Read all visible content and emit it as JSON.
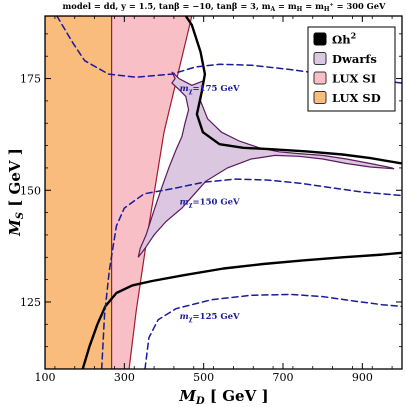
{
  "chart_data": {
    "type": "area",
    "title": "model = dd, y = 1.5, tanβ = −10, tanβ = 3, m_A = m_H = m_H± = 300 GeV",
    "title_parts": {
      "t1": "model = dd, y = 1.5, tan",
      "beta": "β",
      "t2": " = −10, tan",
      "t3": " = 3, m",
      "subA": "A",
      "t4": " = m",
      "subH": "H",
      "t5": " = m",
      "subHp": "H",
      "supHp": "+",
      "t6": " = 300 GeV"
    },
    "xlabel": {
      "main": "M",
      "sub": "D",
      "units": " [ GeV ]"
    },
    "ylabel": {
      "main": "M",
      "sub": "S",
      "units": " [ GeV ]"
    },
    "xlim": [
      100,
      1000
    ],
    "ylim": [
      110,
      189
    ],
    "x_ticks": [
      100,
      300,
      500,
      700,
      900
    ],
    "y_ticks": [
      125,
      150,
      175
    ],
    "grid": false,
    "legend_position": "top-right",
    "legend": [
      {
        "label": "Ωh",
        "sup": "2",
        "color": "#000000"
      },
      {
        "label": "Dwarfs",
        "sup": "",
        "color": "#dcc7e0"
      },
      {
        "label": "LUX SI",
        "sup": "",
        "color": "#f9bfc6"
      },
      {
        "label": "LUX SD",
        "sup": "",
        "color": "#f9bc7c"
      }
    ],
    "regions": [
      {
        "name": "LUX SD",
        "fill": "#f9bc7c",
        "stroke": "#b0601f",
        "polygon": [
          [
            100,
            110
          ],
          [
            268,
            110
          ],
          [
            268,
            189
          ],
          [
            100,
            189
          ]
        ]
      },
      {
        "name": "LUX SI",
        "fill": "#f9bfc6",
        "stroke": "#a01c2c",
        "polygon": [
          [
            268,
            110
          ],
          [
            312,
            110
          ],
          [
            330,
            123
          ],
          [
            360,
            141
          ],
          [
            400,
            163
          ],
          [
            470,
            189
          ],
          [
            268,
            189
          ]
        ]
      },
      {
        "name": "Dwarfs",
        "fill": "#dcc7e0",
        "stroke": "#5a1a5e",
        "polygon": [
          [
            335,
            135
          ],
          [
            352,
            137
          ],
          [
            375,
            140
          ],
          [
            405,
            143
          ],
          [
            445,
            146
          ],
          [
            475,
            149
          ],
          [
            505,
            152
          ],
          [
            560,
            155
          ],
          [
            620,
            157
          ],
          [
            680,
            157.8
          ],
          [
            740,
            157.6
          ],
          [
            800,
            157
          ],
          [
            860,
            156
          ],
          [
            920,
            155.2
          ],
          [
            980,
            154.8
          ],
          [
            975,
            155
          ],
          [
            920,
            156
          ],
          [
            860,
            157
          ],
          [
            800,
            157.8
          ],
          [
            740,
            158.2
          ],
          [
            690,
            158.6
          ],
          [
            640,
            159.5
          ],
          [
            590,
            161
          ],
          [
            545,
            163
          ],
          [
            510,
            166
          ],
          [
            492,
            170
          ],
          [
            500,
            174.5
          ],
          [
            470,
            173.5
          ],
          [
            438,
            175
          ],
          [
            420,
            176.5
          ],
          [
            428,
            175
          ],
          [
            420,
            174
          ],
          [
            438,
            172.5
          ],
          [
            455,
            171
          ],
          [
            462,
            168
          ],
          [
            453,
            165
          ],
          [
            445,
            162
          ],
          [
            430,
            159
          ],
          [
            412,
            155
          ],
          [
            392,
            150
          ],
          [
            373,
            145
          ],
          [
            355,
            140
          ],
          [
            340,
            137
          ]
        ]
      }
    ],
    "lines": [
      {
        "name": "Ωh² upper",
        "color": "#000000",
        "width": 2.4,
        "points": [
          [
            455,
            189
          ],
          [
            470,
            187
          ],
          [
            492,
            181
          ],
          [
            503,
            176
          ],
          [
            495,
            172
          ],
          [
            483,
            167
          ],
          [
            498,
            163
          ],
          [
            540,
            160.3
          ],
          [
            600,
            159.5
          ],
          [
            670,
            159.2
          ],
          [
            760,
            158.7
          ],
          [
            850,
            158
          ],
          [
            920,
            157.2
          ],
          [
            1000,
            156
          ]
        ]
      },
      {
        "name": "Ωh² lower",
        "color": "#000000",
        "width": 2.4,
        "points": [
          [
            195,
            110
          ],
          [
            212,
            115
          ],
          [
            232,
            120
          ],
          [
            252,
            124
          ],
          [
            280,
            127
          ],
          [
            320,
            128.7
          ],
          [
            370,
            129.7
          ],
          [
            450,
            131
          ],
          [
            550,
            132.5
          ],
          [
            650,
            133.5
          ],
          [
            750,
            134.3
          ],
          [
            850,
            135
          ],
          [
            950,
            135.6
          ],
          [
            1000,
            136
          ]
        ]
      },
      {
        "name": "m_χ = 175 GeV",
        "color": "#1a1a9a",
        "width": 1.5,
        "dash": "6 4",
        "points": [
          [
            130,
            189
          ],
          [
            170,
            183
          ],
          [
            200,
            179
          ],
          [
            260,
            176
          ],
          [
            330,
            175.3
          ],
          [
            420,
            176
          ],
          [
            480,
            177.6
          ],
          [
            540,
            178.2
          ],
          [
            620,
            178
          ],
          [
            720,
            177
          ],
          [
            820,
            175.8
          ],
          [
            920,
            174.8
          ],
          [
            1000,
            174
          ]
        ]
      },
      {
        "name": "m_χ = 150 GeV",
        "color": "#1a1a9a",
        "width": 1.5,
        "dash": "6 4",
        "points": [
          [
            243,
            110
          ],
          [
            250,
            122
          ],
          [
            262,
            132
          ],
          [
            280,
            142
          ],
          [
            300,
            146
          ],
          [
            350,
            149.2
          ],
          [
            430,
            150.5
          ],
          [
            500,
            151.8
          ],
          [
            580,
            152.5
          ],
          [
            660,
            152.3
          ],
          [
            740,
            151.6
          ],
          [
            820,
            150.6
          ],
          [
            900,
            149.6
          ],
          [
            1000,
            148.8
          ]
        ]
      },
      {
        "name": "m_χ = 125 GeV",
        "color": "#1a1a9a",
        "width": 1.5,
        "dash": "6 4",
        "points": [
          [
            352,
            110
          ],
          [
            362,
            117
          ],
          [
            385,
            121
          ],
          [
            430,
            123.5
          ],
          [
            520,
            125.5
          ],
          [
            620,
            126.5
          ],
          [
            720,
            126.7
          ],
          [
            800,
            126.2
          ],
          [
            880,
            125.2
          ],
          [
            950,
            124.4
          ],
          [
            1000,
            124
          ]
        ]
      }
    ],
    "annotations": [
      {
        "text": "m",
        "sub": "χ",
        "rest": "=175 GeV",
        "x": 515,
        "y": 172.2
      },
      {
        "text": "m",
        "sub": "χ",
        "rest": "=150 GeV",
        "x": 515,
        "y": 146.8
      },
      {
        "text": "m",
        "sub": "χ",
        "rest": "=125 GeV",
        "x": 515,
        "y": 121.2
      }
    ]
  }
}
